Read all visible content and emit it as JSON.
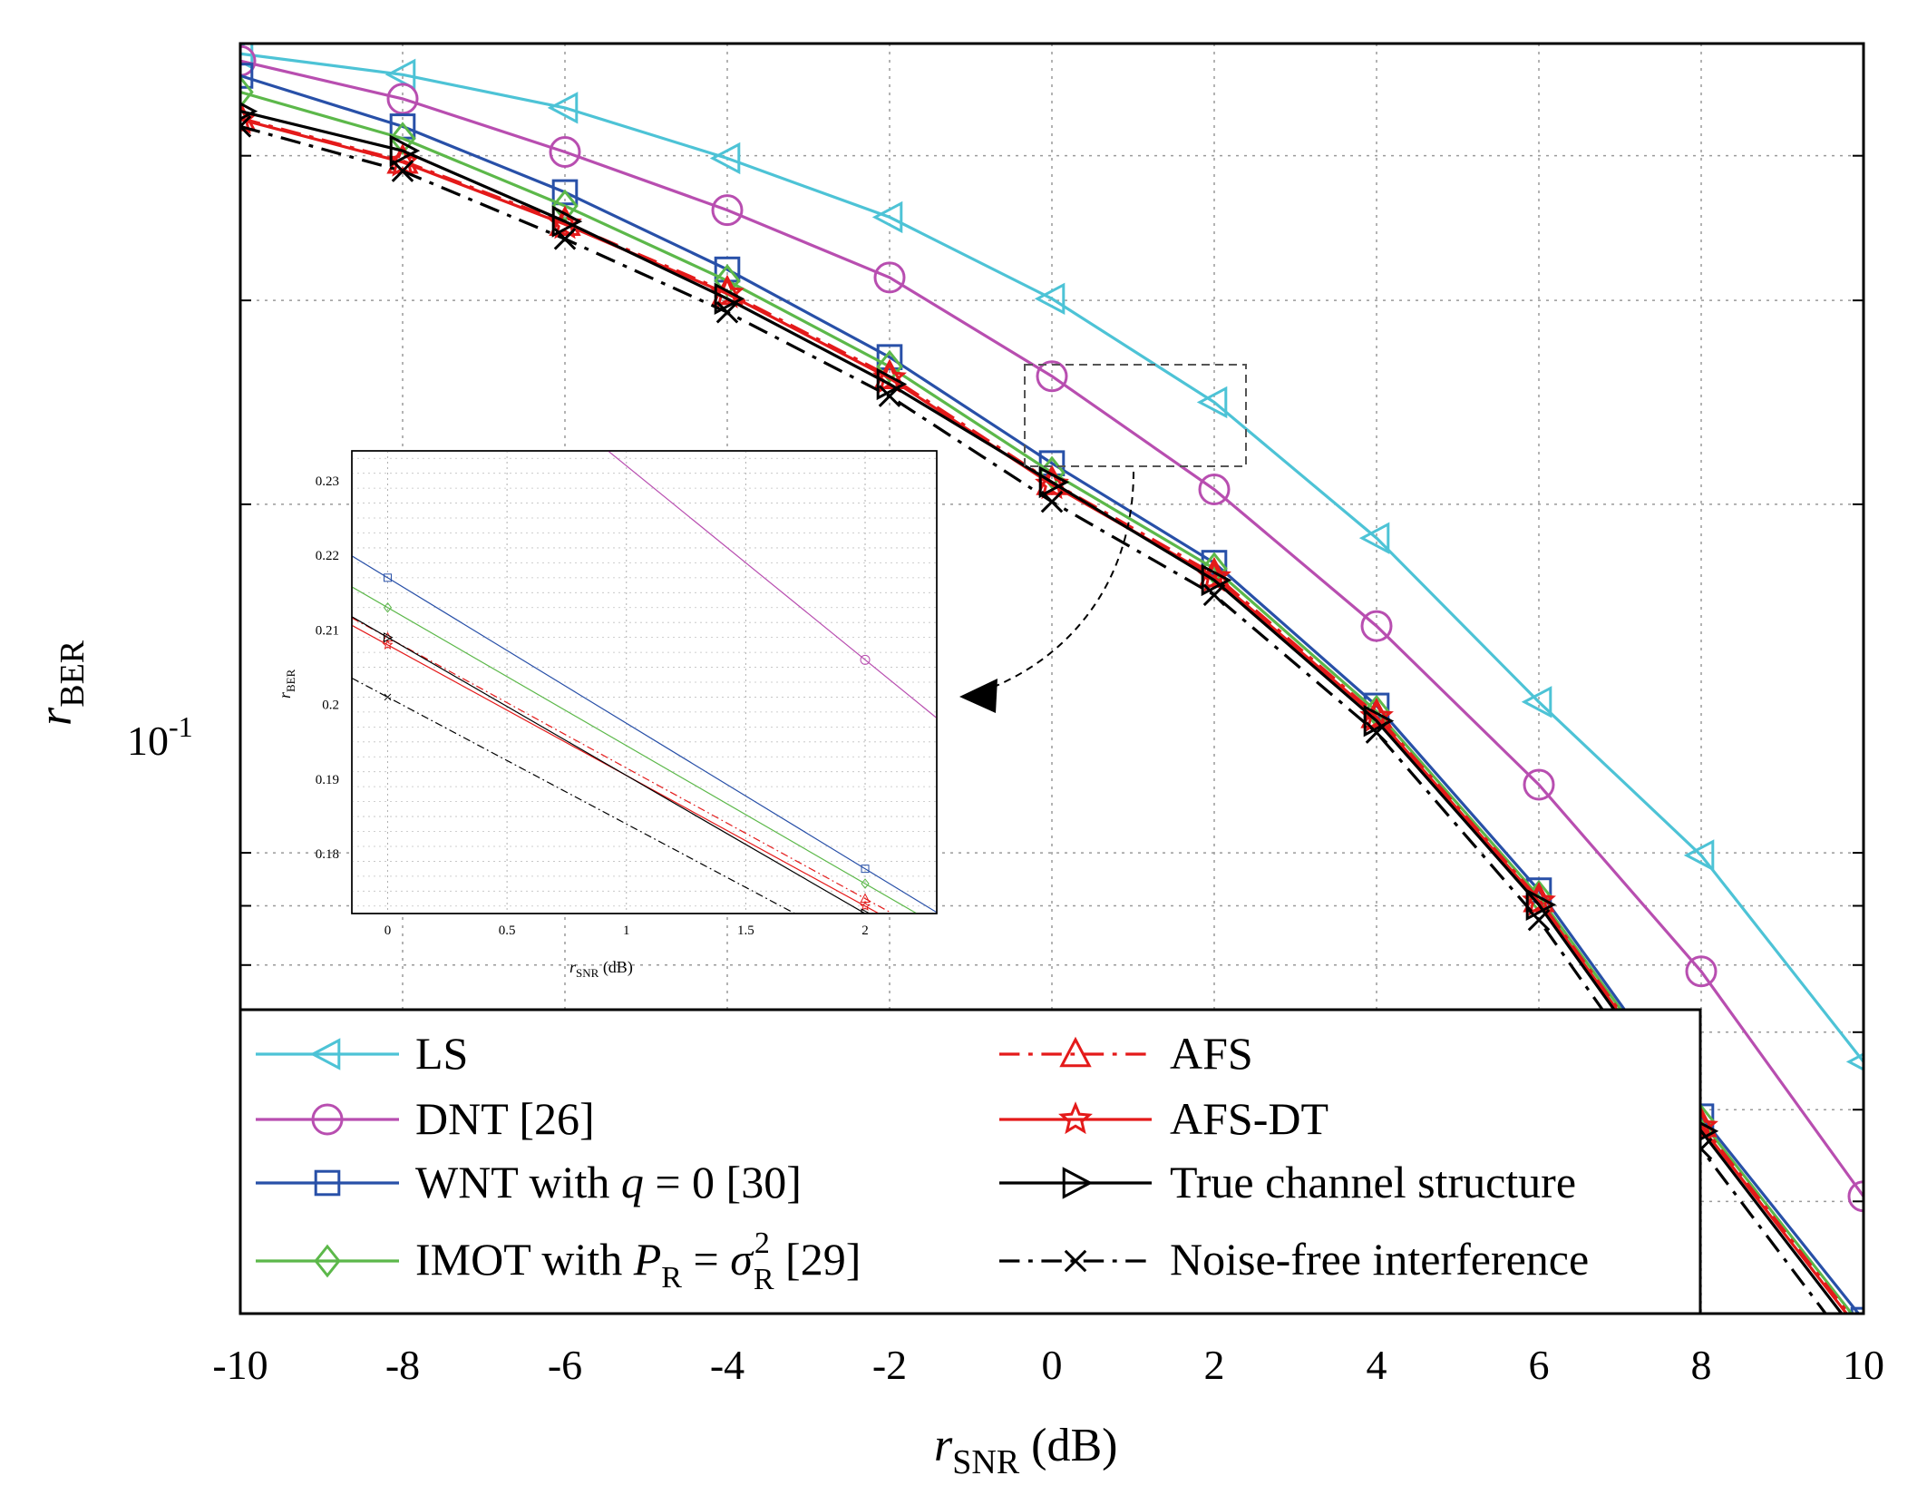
{
  "chart_data": {
    "type": "line",
    "xlabel": {
      "base": "r",
      "sub": "SNR",
      "suffix": " (dB)"
    },
    "ylabel": {
      "base": "r",
      "sub": "BER"
    },
    "xlim": [
      -10,
      10
    ],
    "ylim": [
      0.04,
      0.5
    ],
    "y_scale": "log",
    "grid": true,
    "x_ticks": [
      "-10",
      "-8",
      "-6",
      "-4",
      "-2",
      "0",
      "2",
      "4",
      "6",
      "8",
      "10"
    ],
    "y_tick_label": {
      "base": "10",
      "exp": "-1"
    },
    "legend_position": "bottom",
    "x": [
      -10,
      -8,
      -6,
      -4,
      -2,
      0,
      2,
      4,
      6,
      8,
      10
    ],
    "series": [
      {
        "name": "LS",
        "color": "#4dc3d6",
        "dash": "solid",
        "marker": "triangle-left",
        "values": [
          0.49,
          0.47,
          0.44,
          0.398,
          0.354,
          0.301,
          0.245,
          0.187,
          0.135,
          0.0995,
          0.066
        ]
      },
      {
        "name": "DNT [26]",
        "color": "#b84eb0",
        "dash": "solid",
        "marker": "circle",
        "values": [
          0.483,
          0.448,
          0.403,
          0.359,
          0.314,
          0.258,
          0.206,
          0.157,
          0.1145,
          0.079,
          0.0505
        ]
      },
      {
        "name": "WNT with q = 0 [30]",
        "color": "#2850a8",
        "dash": "solid",
        "marker": "square",
        "values": [
          0.469,
          0.424,
          0.372,
          0.319,
          0.268,
          0.217,
          0.178,
          0.134,
          0.0928,
          0.0592,
          0.0395
        ]
      },
      {
        "name": "IMOT with P_R = σ_R^2 [29]",
        "color": "#5cb84a",
        "dash": "solid",
        "marker": "diamond",
        "values": [
          0.454,
          0.414,
          0.362,
          0.312,
          0.263,
          0.213,
          0.176,
          0.1325,
          0.0917,
          0.0587,
          0.0388
        ]
      },
      {
        "name": "AFS",
        "color": "#e41a1a",
        "dash": "dashdot",
        "marker": "triangle-up",
        "values": [
          0.431,
          0.396,
          0.35,
          0.305,
          0.258,
          0.209,
          0.174,
          0.1315,
          0.0912,
          0.0583,
          0.0385
        ]
      },
      {
        "name": "AFS-DT",
        "color": "#e41a1a",
        "dash": "solid",
        "marker": "star",
        "values": [
          0.43,
          0.395,
          0.349,
          0.304,
          0.257,
          0.208,
          0.173,
          0.131,
          0.0908,
          0.058,
          0.0383
        ]
      },
      {
        "name": "True channel structure",
        "color": "#000000",
        "dash": "solid",
        "marker": "triangle-right",
        "values": [
          0.437,
          0.404,
          0.351,
          0.301,
          0.254,
          0.209,
          0.172,
          0.13,
          0.0902,
          0.0575,
          0.0378
        ]
      },
      {
        "name": "Noise-free interference",
        "color": "#000000",
        "dash": "dashdot",
        "marker": "x",
        "values": [
          0.424,
          0.388,
          0.339,
          0.293,
          0.248,
          0.201,
          0.167,
          0.127,
          0.0875,
          0.0555,
          0.0362
        ]
      }
    ],
    "inset": {
      "xlim": [
        -0.15,
        2.3
      ],
      "ylim": [
        0.172,
        0.234
      ],
      "x_ticks": [
        "0",
        "0.5",
        "1",
        "1.5",
        "2"
      ],
      "y_ticks": [
        "0.18",
        "0.19",
        "0.2",
        "0.21",
        "0.22",
        "0.23"
      ],
      "xlabel": {
        "base": "r",
        "sub": "SNR",
        "suffix": " (dB)"
      },
      "ylabel": {
        "base": "r",
        "sub": "BER"
      }
    }
  },
  "legend": {
    "labels": {
      "ls": "LS",
      "dnt": "DNT [26]",
      "wnt": {
        "pre": "WNT with ",
        "var": "q",
        "post": " = 0 [30]"
      },
      "imot": {
        "pre": "IMOT with ",
        "var": "P",
        "var_sub": "R",
        "eq": " = ",
        "sym": "σ",
        "sym_sup": "2",
        "sym_sub": "R",
        "post": " [29]"
      },
      "afs": "AFS",
      "afsdt": "AFS-DT",
      "true": "True channel structure",
      "noise": "Noise-free interference"
    }
  }
}
